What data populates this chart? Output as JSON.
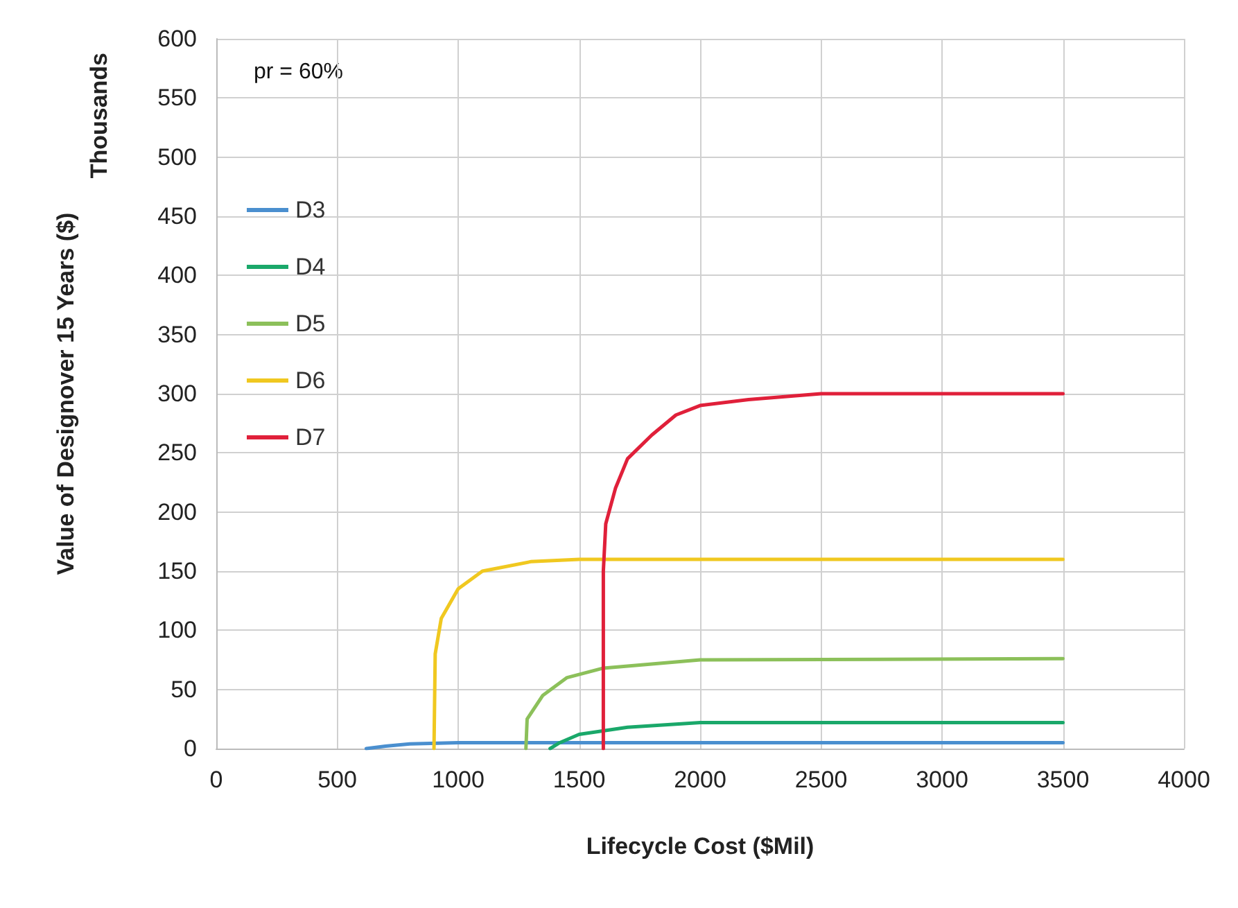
{
  "chart_data": {
    "type": "line",
    "xlabel": "Lifecycle Cost ($Mil)",
    "ylabel": "Value of Designover 15 Years ($)",
    "annotations": [
      "pr = 60%",
      "Thousands"
    ],
    "xlim": [
      0,
      4000
    ],
    "xticks": [
      0,
      500,
      1000,
      1500,
      2000,
      2500,
      3000,
      3500,
      4000
    ],
    "ylim": [
      0,
      600
    ],
    "yticks": [
      0,
      50,
      100,
      150,
      200,
      250,
      300,
      350,
      400,
      450,
      500,
      550,
      600
    ],
    "grid": true,
    "legend": "top left",
    "marker": "none",
    "line_style": "solid",
    "series": [
      {
        "name": "D3",
        "color": "#4a8fcf",
        "x": [
          620,
          700,
          800,
          1000,
          3500
        ],
        "values": [
          0,
          2,
          4,
          5,
          5
        ]
      },
      {
        "name": "D4",
        "color": "#1aa86a",
        "x": [
          1380,
          1420,
          1500,
          1700,
          2000,
          3500
        ],
        "values": [
          0,
          5,
          12,
          18,
          22,
          22
        ]
      },
      {
        "name": "D5",
        "color": "#8cc05a",
        "x": [
          1280,
          1285,
          1350,
          1450,
          1600,
          2000,
          3500
        ],
        "values": [
          0,
          25,
          45,
          60,
          68,
          75,
          76
        ]
      },
      {
        "name": "D6",
        "color": "#f0c820",
        "x": [
          900,
          905,
          930,
          1000,
          1100,
          1300,
          1500,
          3500
        ],
        "values": [
          0,
          80,
          110,
          135,
          150,
          158,
          160,
          160
        ]
      },
      {
        "name": "D7",
        "color": "#e0203a",
        "x": [
          1600,
          1600,
          1610,
          1650,
          1700,
          1800,
          1900,
          2000,
          2200,
          2500,
          3500
        ],
        "values": [
          0,
          150,
          190,
          220,
          245,
          265,
          282,
          290,
          295,
          300,
          300
        ]
      }
    ]
  }
}
